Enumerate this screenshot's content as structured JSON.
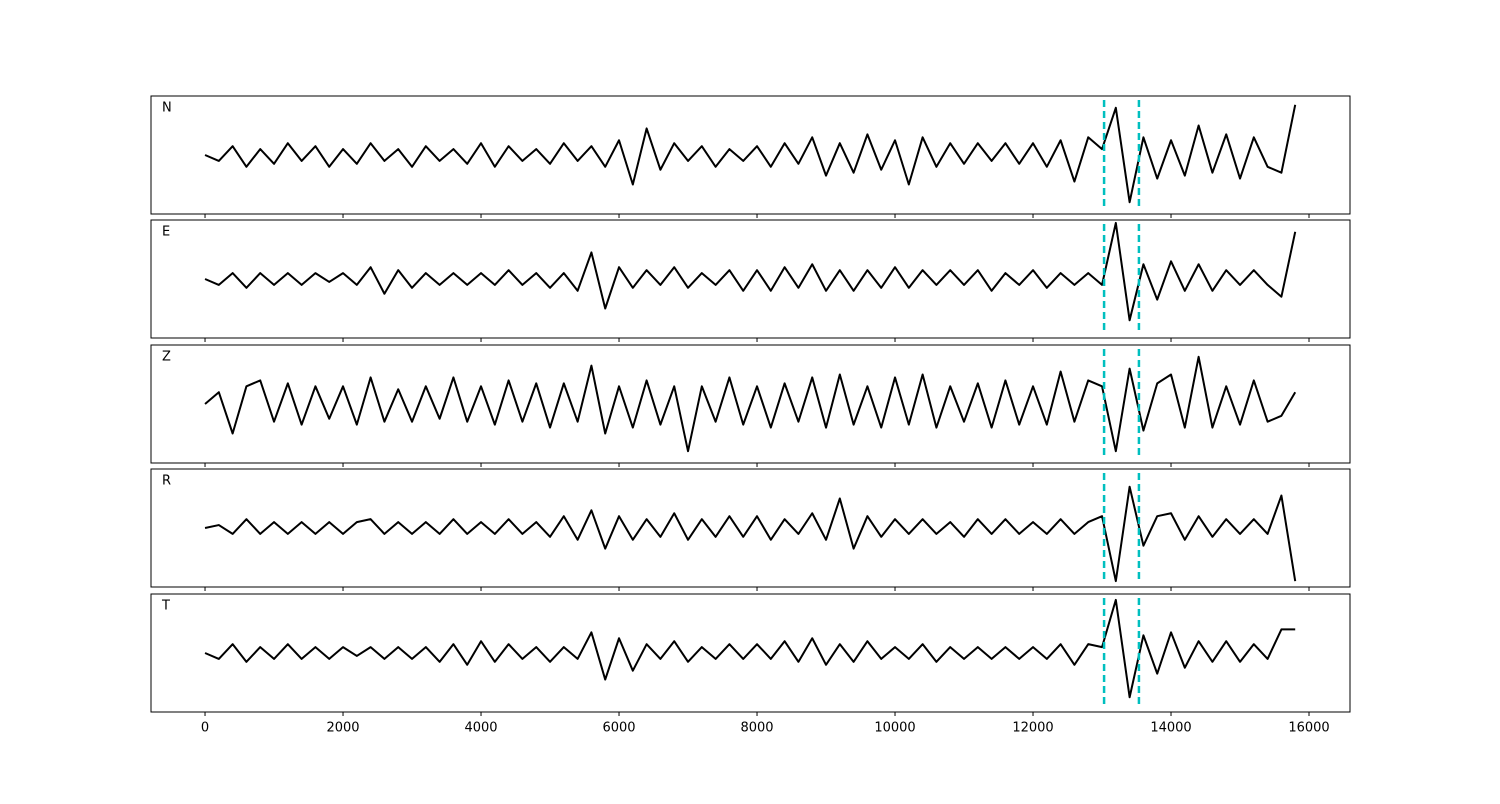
{
  "chart_data": {
    "type": "line",
    "x": [
      0,
      200,
      400,
      600,
      800,
      1000,
      1200,
      1400,
      1600,
      1800,
      2000,
      2200,
      2400,
      2600,
      2800,
      3000,
      3200,
      3400,
      3600,
      3800,
      4000,
      4200,
      4400,
      4600,
      4800,
      5000,
      5200,
      5400,
      5600,
      5800,
      6000,
      6200,
      6400,
      6600,
      6800,
      7000,
      7200,
      7400,
      7600,
      7800,
      8000,
      8200,
      8400,
      8600,
      8800,
      9000,
      9200,
      9400,
      9600,
      9800,
      10000,
      10200,
      10400,
      10600,
      10800,
      11000,
      11200,
      11400,
      11600,
      11800,
      12000,
      12200,
      12400,
      12600,
      12800,
      13000,
      13200,
      13400,
      13600,
      13800,
      14000,
      14200,
      14400,
      14600,
      14800,
      15000,
      15200,
      15400,
      15600,
      15800
    ],
    "series": [
      {
        "name": "N",
        "color": "#000000",
        "values": [
          0,
          -0.1,
          0.15,
          -0.2,
          0.1,
          -0.15,
          0.2,
          -0.1,
          0.15,
          -0.2,
          0.1,
          -0.15,
          0.2,
          -0.1,
          0.1,
          -0.2,
          0.15,
          -0.1,
          0.1,
          -0.15,
          0.2,
          -0.2,
          0.15,
          -0.1,
          0.1,
          -0.15,
          0.2,
          -0.1,
          0.15,
          -0.2,
          0.25,
          -0.5,
          0.45,
          -0.25,
          0.2,
          -0.1,
          0.15,
          -0.2,
          0.1,
          -0.1,
          0.15,
          -0.2,
          0.2,
          -0.15,
          0.3,
          -0.35,
          0.2,
          -0.3,
          0.35,
          -0.25,
          0.25,
          -0.5,
          0.3,
          -0.2,
          0.2,
          -0.15,
          0.2,
          -0.1,
          0.2,
          -0.15,
          0.2,
          -0.2,
          0.25,
          -0.45,
          0.3,
          0.1,
          0.8,
          -0.8,
          0.3,
          -0.4,
          0.25,
          -0.35,
          0.5,
          -0.3,
          0.35,
          -0.4,
          0.3,
          -0.2,
          -0.3,
          0.85
        ]
      },
      {
        "name": "E",
        "color": "#000000",
        "values": [
          0,
          -0.1,
          0.1,
          -0.15,
          0.1,
          -0.1,
          0.1,
          -0.1,
          0.1,
          -0.05,
          0.1,
          -0.1,
          0.2,
          -0.25,
          0.15,
          -0.15,
          0.1,
          -0.1,
          0.1,
          -0.1,
          0.1,
          -0.1,
          0.15,
          -0.1,
          0.1,
          -0.15,
          0.1,
          -0.2,
          0.45,
          -0.5,
          0.2,
          -0.15,
          0.15,
          -0.1,
          0.2,
          -0.15,
          0.1,
          -0.1,
          0.15,
          -0.2,
          0.15,
          -0.2,
          0.2,
          -0.15,
          0.25,
          -0.2,
          0.15,
          -0.2,
          0.15,
          -0.15,
          0.2,
          -0.15,
          0.15,
          -0.1,
          0.15,
          -0.1,
          0.15,
          -0.2,
          0.1,
          -0.1,
          0.15,
          -0.15,
          0.1,
          -0.1,
          0.1,
          -0.1,
          0.95,
          -0.7,
          0.25,
          -0.35,
          0.3,
          -0.2,
          0.25,
          -0.2,
          0.15,
          -0.1,
          0.15,
          -0.1,
          -0.3,
          0.8
        ]
      },
      {
        "name": "Z",
        "color": "#000000",
        "values": [
          0,
          0.2,
          -0.5,
          0.3,
          0.4,
          -0.3,
          0.35,
          -0.35,
          0.3,
          -0.25,
          0.3,
          -0.35,
          0.45,
          -0.3,
          0.25,
          -0.3,
          0.3,
          -0.25,
          0.45,
          -0.3,
          0.3,
          -0.35,
          0.4,
          -0.3,
          0.35,
          -0.4,
          0.35,
          -0.3,
          0.65,
          -0.5,
          0.3,
          -0.4,
          0.4,
          -0.35,
          0.3,
          -0.8,
          0.3,
          -0.3,
          0.45,
          -0.35,
          0.3,
          -0.4,
          0.35,
          -0.3,
          0.45,
          -0.4,
          0.5,
          -0.35,
          0.3,
          -0.4,
          0.45,
          -0.35,
          0.5,
          -0.4,
          0.3,
          -0.3,
          0.35,
          -0.4,
          0.4,
          -0.35,
          0.3,
          -0.35,
          0.55,
          -0.3,
          0.4,
          0.3,
          -0.8,
          0.6,
          -0.45,
          0.35,
          0.5,
          -0.4,
          0.8,
          -0.4,
          0.3,
          -0.35,
          0.4,
          -0.3,
          -0.2,
          0.2
        ]
      },
      {
        "name": "R",
        "color": "#000000",
        "values": [
          0,
          0.05,
          -0.1,
          0.15,
          -0.1,
          0.1,
          -0.1,
          0.1,
          -0.1,
          0.1,
          -0.1,
          0.1,
          0.15,
          -0.1,
          0.1,
          -0.1,
          0.1,
          -0.1,
          0.15,
          -0.1,
          0.1,
          -0.1,
          0.15,
          -0.1,
          0.1,
          -0.15,
          0.2,
          -0.2,
          0.3,
          -0.35,
          0.2,
          -0.2,
          0.15,
          -0.15,
          0.25,
          -0.2,
          0.15,
          -0.15,
          0.2,
          -0.15,
          0.2,
          -0.2,
          0.15,
          -0.1,
          0.25,
          -0.2,
          0.5,
          -0.35,
          0.2,
          -0.15,
          0.15,
          -0.1,
          0.15,
          -0.1,
          0.1,
          -0.15,
          0.15,
          -0.1,
          0.15,
          -0.1,
          0.1,
          -0.1,
          0.15,
          -0.1,
          0.1,
          0.2,
          -0.9,
          0.7,
          -0.3,
          0.2,
          0.25,
          -0.2,
          0.2,
          -0.15,
          0.15,
          -0.1,
          0.15,
          -0.1,
          0.55,
          -0.9
        ]
      },
      {
        "name": "T",
        "color": "#000000",
        "values": [
          0,
          -0.1,
          0.15,
          -0.15,
          0.1,
          -0.1,
          0.15,
          -0.1,
          0.1,
          -0.1,
          0.1,
          -0.05,
          0.1,
          -0.1,
          0.1,
          -0.1,
          0.1,
          -0.15,
          0.15,
          -0.2,
          0.2,
          -0.15,
          0.15,
          -0.1,
          0.1,
          -0.15,
          0.1,
          -0.1,
          0.35,
          -0.45,
          0.25,
          -0.3,
          0.15,
          -0.1,
          0.2,
          -0.15,
          0.1,
          -0.1,
          0.15,
          -0.1,
          0.15,
          -0.1,
          0.2,
          -0.15,
          0.25,
          -0.2,
          0.15,
          -0.15,
          0.2,
          -0.1,
          0.1,
          -0.1,
          0.15,
          -0.15,
          0.1,
          -0.1,
          0.1,
          -0.1,
          0.1,
          -0.1,
          0.1,
          -0.1,
          0.15,
          -0.2,
          0.15,
          0.1,
          0.9,
          -0.75,
          0.3,
          -0.35,
          0.35,
          -0.25,
          0.2,
          -0.15,
          0.2,
          -0.15,
          0.15,
          -0.1,
          0.4,
          0.4
        ]
      }
    ],
    "xlim": [
      -783,
      16594
    ],
    "xticks": [
      0,
      2000,
      4000,
      6000,
      8000,
      10000,
      12000,
      14000,
      16000
    ],
    "ylim": [
      -1,
      1
    ],
    "vlines": [
      13030,
      13535
    ],
    "vline_color": "#00bfbf"
  }
}
